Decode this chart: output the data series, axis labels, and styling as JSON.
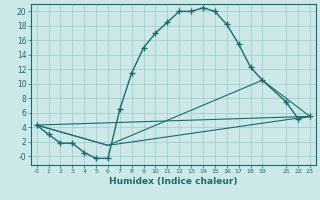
{
  "xlabel": "Humidex (Indice chaleur)",
  "bg_color": "#cce8e8",
  "grid_color": "#99cccc",
  "line_color": "#1a6b6b",
  "xlim": [
    -0.5,
    23.5
  ],
  "ylim": [
    -1.2,
    21
  ],
  "xtick_positions": [
    0,
    1,
    2,
    3,
    4,
    5,
    6,
    7,
    8,
    9,
    10,
    11,
    12,
    13,
    14,
    15,
    16,
    17,
    18,
    19,
    21,
    22,
    23
  ],
  "xtick_labels": [
    "0",
    "1",
    "2",
    "3",
    "4",
    "5",
    "6",
    "7",
    "8",
    "9",
    "10",
    "11",
    "12",
    "13",
    "14",
    "15",
    "16",
    "17",
    "18",
    "19",
    "21",
    "22",
    "23"
  ],
  "ytick_positions": [
    0,
    2,
    4,
    6,
    8,
    10,
    12,
    14,
    16,
    18,
    20
  ],
  "ytick_labels": [
    "-0",
    "2",
    "4",
    "6",
    "8",
    "10",
    "12",
    "14",
    "16",
    "18",
    "20"
  ],
  "main_curve": {
    "x": [
      0,
      1,
      2,
      3,
      4,
      5,
      6,
      7,
      8,
      9,
      10,
      11,
      12,
      13,
      14,
      15,
      16,
      17,
      18,
      19,
      21,
      22,
      23
    ],
    "y": [
      4.3,
      3.0,
      1.8,
      1.8,
      0.5,
      -0.3,
      -0.3,
      6.5,
      11.5,
      15.0,
      17.0,
      18.5,
      20.0,
      20.0,
      20.5,
      20.0,
      18.2,
      15.5,
      12.3,
      10.5,
      7.5,
      5.2,
      5.5
    ]
  },
  "line1": {
    "x": [
      0,
      23
    ],
    "y": [
      4.3,
      5.5
    ]
  },
  "line2": {
    "x": [
      0,
      6,
      23
    ],
    "y": [
      4.3,
      1.5,
      5.5
    ]
  },
  "line3": {
    "x": [
      0,
      6,
      19,
      23
    ],
    "y": [
      4.3,
      1.5,
      10.5,
      5.5
    ]
  }
}
